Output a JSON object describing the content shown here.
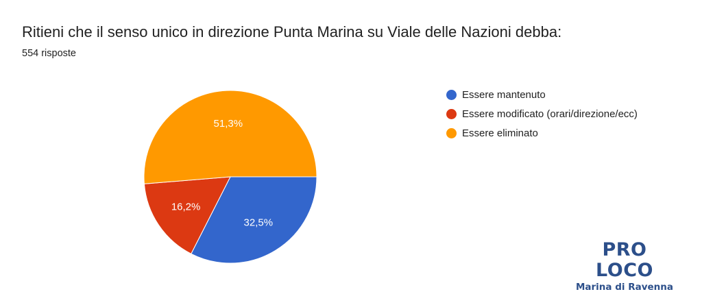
{
  "header": {
    "title": "Ritieni che il senso unico in direzione Punta Marina su Viale delle Nazioni debba:",
    "responses": "554 risposte"
  },
  "chart_data": {
    "type": "pie",
    "categories": [
      "Essere mantenuto",
      "Essere modificato (orari/direzione/ecc)",
      "Essere eliminato"
    ],
    "values": [
      32.5,
      16.2,
      51.3
    ],
    "labels": [
      "32,5%",
      "16,2%",
      "51,3%"
    ],
    "colors": [
      "#3366cc",
      "#dc3912",
      "#ff9900"
    ],
    "legend": "right"
  },
  "logo": {
    "main": "PRO LOCO",
    "sub": "Marina di Ravenna"
  }
}
